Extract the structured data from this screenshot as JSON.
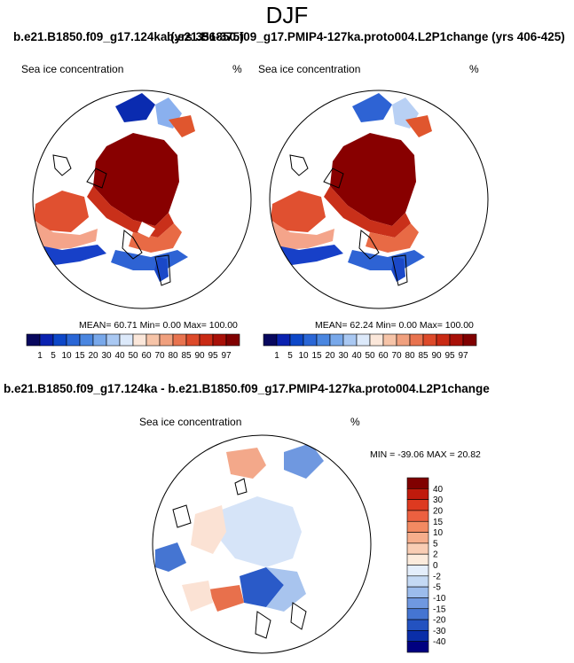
{
  "title": "DJF",
  "panel_titles": {
    "left_overlap": "b.e21.B1850.f09_g17.124ka (yrs 356-375)",
    "right": "b.e21.B1850.f09_g17.PMIP4-127ka.proto004.L2P1change (yrs 406-425)",
    "diff": "b.e21.B1850.f09_g17.124ka - b.e21.B1850.f09_g17.PMIP4-127ka.proto004.L2P1change"
  },
  "panels": [
    {
      "label": "Sea ice concentration",
      "unit": "%",
      "stats": "MEAN=  60.71  Min=   0.00  Max= 100.00"
    },
    {
      "label": "Sea ice concentration",
      "unit": "%",
      "stats": "MEAN=  62.24  Min=   0.00  Max= 100.00"
    },
    {
      "label": "Sea ice concentration",
      "unit": "%",
      "stats": "MIN = -39.06 MAX =  20.82"
    }
  ],
  "chart_data": [
    {
      "type": "heatmap",
      "title": "b.e21.B1850.f09_g17.124ka (yrs 356-375)",
      "variable": "Sea ice concentration",
      "units": "%",
      "projection": "north polar stereographic",
      "mean": 60.71,
      "min": 0.0,
      "max": 100.0,
      "colorbar_levels": [
        1,
        5,
        10,
        15,
        20,
        30,
        40,
        50,
        60,
        70,
        80,
        85,
        90,
        95,
        97
      ],
      "colorbar_colors": [
        "#08085e",
        "#0a22b0",
        "#0d47c8",
        "#2a66d6",
        "#4a86e0",
        "#78a8ea",
        "#a9c8f2",
        "#dce9fa",
        "#fbe7da",
        "#f6c4a8",
        "#f0a07e",
        "#e8734f",
        "#dd4a2a",
        "#c92a14",
        "#a81008",
        "#800000"
      ]
    },
    {
      "type": "heatmap",
      "title": "b.e21.B1850.f09_g17.PMIP4-127ka.proto004.L2P1change (yrs 406-425)",
      "variable": "Sea ice concentration",
      "units": "%",
      "projection": "north polar stereographic",
      "mean": 62.24,
      "min": 0.0,
      "max": 100.0,
      "colorbar_levels": [
        1,
        5,
        10,
        15,
        20,
        30,
        40,
        50,
        60,
        70,
        80,
        85,
        90,
        95,
        97
      ],
      "colorbar_colors": [
        "#08085e",
        "#0a22b0",
        "#0d47c8",
        "#2a66d6",
        "#4a86e0",
        "#78a8ea",
        "#a9c8f2",
        "#dce9fa",
        "#fbe7da",
        "#f6c4a8",
        "#f0a07e",
        "#e8734f",
        "#dd4a2a",
        "#c92a14",
        "#a81008",
        "#800000"
      ]
    },
    {
      "type": "heatmap",
      "title": "b.e21.B1850.f09_g17.124ka - b.e21.B1850.f09_g17.PMIP4-127ka.proto004.L2P1change",
      "variable": "Sea ice concentration",
      "units": "%",
      "projection": "north polar stereographic",
      "min": -39.06,
      "max": 20.82,
      "colorbar_levels": [
        40,
        30,
        20,
        15,
        10,
        5,
        2,
        0,
        -2,
        -5,
        -10,
        -15,
        -20,
        -30,
        -40
      ],
      "colorbar_colors": [
        "#800000",
        "#c01a0c",
        "#dd3a20",
        "#ec6040",
        "#f28a62",
        "#f6ae8c",
        "#f9cdb4",
        "#fcebdc",
        "#e4eefb",
        "#c4d9f4",
        "#9cbcec",
        "#6f98e0",
        "#4575d2",
        "#2352c0",
        "#0a2ea8",
        "#000080"
      ]
    }
  ]
}
